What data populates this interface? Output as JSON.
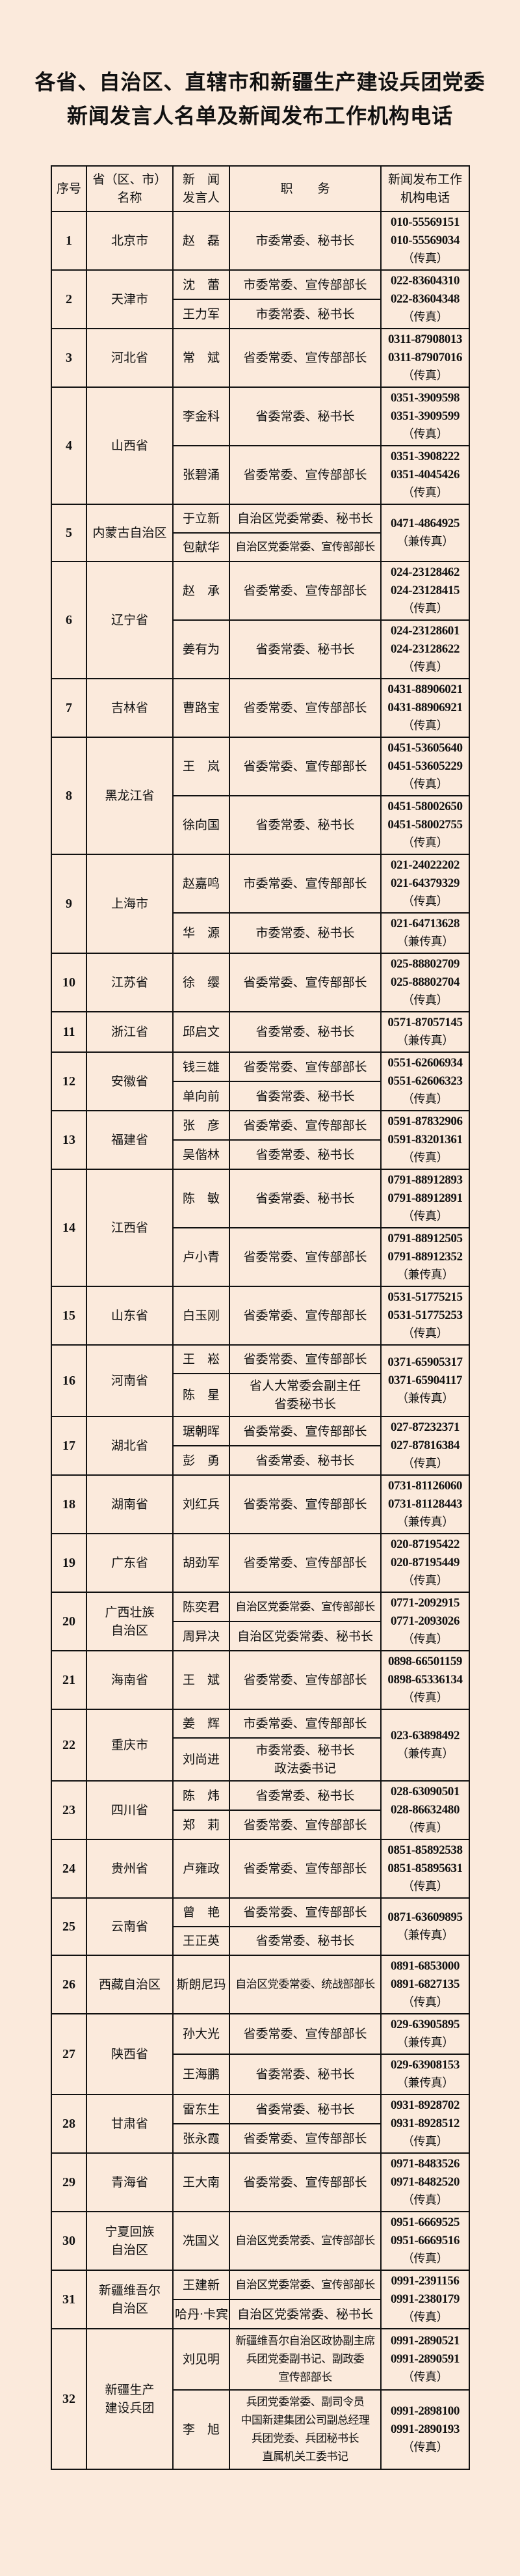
{
  "title": [
    "各省、自治区、直辖市和新疆生产建设兵团党委",
    "新闻发言人名单及新闻发布工作机构电话"
  ],
  "colors": {
    "background": "#fbeadc",
    "border": "#111111",
    "text": "#111111"
  },
  "header": {
    "seq": "序号",
    "province": "省（区、市）\n名称",
    "speaker": "新　闻\n发言人",
    "duty": "职　　务",
    "phone": "新闻发布工作\n机构电话"
  },
  "rows": [
    {
      "seq": "1",
      "province": "北京市",
      "groups": [
        {
          "speakers": [
            {
              "name": "赵　磊",
              "duty": "市委常委、秘书长"
            }
          ],
          "phones": [
            "010-55569151",
            "010-55569034",
            "（传真）"
          ]
        }
      ]
    },
    {
      "seq": "2",
      "province": "天津市",
      "groups": [
        {
          "speakers": [
            {
              "name": "沈　蕾",
              "duty": "市委常委、宣传部部长"
            },
            {
              "name": "王力军",
              "duty": "市委常委、秘书长"
            }
          ],
          "phones": [
            "022-83604310",
            "022-83604348",
            "（传真）"
          ]
        }
      ]
    },
    {
      "seq": "3",
      "province": "河北省",
      "groups": [
        {
          "speakers": [
            {
              "name": "常　斌",
              "duty": "省委常委、宣传部部长"
            }
          ],
          "phones": [
            "0311-87908013",
            "0311-87907016",
            "（传真）"
          ]
        }
      ]
    },
    {
      "seq": "4",
      "province": "山西省",
      "groups": [
        {
          "speakers": [
            {
              "name": "李金科",
              "duty": "省委常委、秘书长"
            }
          ],
          "phones": [
            "0351-3909598",
            "0351-3909599",
            "（传真）"
          ]
        },
        {
          "speakers": [
            {
              "name": "张碧涌",
              "duty": "省委常委、宣传部部长"
            }
          ],
          "phones": [
            "0351-3908222",
            "0351-4045426",
            "（传真）"
          ]
        }
      ]
    },
    {
      "seq": "5",
      "province": "内蒙古自治区",
      "groups": [
        {
          "speakers": [
            {
              "name": "于立新",
              "duty": "自治区党委常委、秘书长"
            },
            {
              "name": "包献华",
              "duty": "自治区党委常委、宣传部部长"
            }
          ],
          "phones": [
            "0471-4864925",
            "（兼传真）"
          ]
        }
      ]
    },
    {
      "seq": "6",
      "province": "辽宁省",
      "groups": [
        {
          "speakers": [
            {
              "name": "赵　承",
              "duty": "省委常委、宣传部部长"
            }
          ],
          "phones": [
            "024-23128462",
            "024-23128415",
            "（传真）"
          ]
        },
        {
          "speakers": [
            {
              "name": "姜有为",
              "duty": "省委常委、秘书长"
            }
          ],
          "phones": [
            "024-23128601",
            "024-23128622",
            "（传真）"
          ]
        }
      ]
    },
    {
      "seq": "7",
      "province": "吉林省",
      "groups": [
        {
          "speakers": [
            {
              "name": "曹路宝",
              "duty": "省委常委、宣传部部长"
            }
          ],
          "phones": [
            "0431-88906021",
            "0431-88906921",
            "（传真）"
          ]
        }
      ]
    },
    {
      "seq": "8",
      "province": "黑龙江省",
      "groups": [
        {
          "speakers": [
            {
              "name": "王　岚",
              "duty": "省委常委、宣传部部长"
            }
          ],
          "phones": [
            "0451-53605640",
            "0451-53605229",
            "（传真）"
          ]
        },
        {
          "speakers": [
            {
              "name": "徐向国",
              "duty": "省委常委、秘书长"
            }
          ],
          "phones": [
            "0451-58002650",
            "0451-58002755",
            "（传真）"
          ]
        }
      ]
    },
    {
      "seq": "9",
      "province": "上海市",
      "groups": [
        {
          "speakers": [
            {
              "name": "赵嘉鸣",
              "duty": "市委常委、宣传部部长"
            }
          ],
          "phones": [
            "021-24022202",
            "021-64379329",
            "（传真）"
          ]
        },
        {
          "speakers": [
            {
              "name": "华　源",
              "duty": "市委常委、秘书长"
            }
          ],
          "phones": [
            "021-64713628",
            "（兼传真）"
          ]
        }
      ]
    },
    {
      "seq": "10",
      "province": "江苏省",
      "groups": [
        {
          "speakers": [
            {
              "name": "徐　缨",
              "duty": "省委常委、宣传部部长"
            }
          ],
          "phones": [
            "025-88802709",
            "025-88802704",
            "（传真）"
          ]
        }
      ]
    },
    {
      "seq": "11",
      "province": "浙江省",
      "groups": [
        {
          "speakers": [
            {
              "name": "邱启文",
              "duty": "省委常委、秘书长"
            }
          ],
          "phones": [
            "0571-87057145",
            "（兼传真）"
          ]
        }
      ]
    },
    {
      "seq": "12",
      "province": "安徽省",
      "groups": [
        {
          "speakers": [
            {
              "name": "钱三雄",
              "duty": "省委常委、宣传部部长"
            },
            {
              "name": "单向前",
              "duty": "省委常委、秘书长"
            }
          ],
          "phones": [
            "0551-62606934",
            "0551-62606323",
            "（传真）"
          ]
        }
      ]
    },
    {
      "seq": "13",
      "province": "福建省",
      "groups": [
        {
          "speakers": [
            {
              "name": "张　彦",
              "duty": "省委常委、宣传部部长"
            },
            {
              "name": "吴偕林",
              "duty": "省委常委、秘书长"
            }
          ],
          "phones": [
            "0591-87832906",
            "0591-83201361",
            "（传真）"
          ]
        }
      ]
    },
    {
      "seq": "14",
      "province": "江西省",
      "groups": [
        {
          "speakers": [
            {
              "name": "陈　敏",
              "duty": "省委常委、秘书长"
            }
          ],
          "phones": [
            "0791-88912893",
            "0791-88912891",
            "（传真）"
          ]
        },
        {
          "speakers": [
            {
              "name": "卢小青",
              "duty": "省委常委、宣传部部长"
            }
          ],
          "phones": [
            "0791-88912505",
            "0791-88912352",
            "（兼传真）"
          ]
        }
      ]
    },
    {
      "seq": "15",
      "province": "山东省",
      "groups": [
        {
          "speakers": [
            {
              "name": "白玉刚",
              "duty": "省委常委、宣传部部长"
            }
          ],
          "phones": [
            "0531-51775215",
            "0531-51775253",
            "（传真）"
          ]
        }
      ]
    },
    {
      "seq": "16",
      "province": "河南省",
      "groups": [
        {
          "speakers": [
            {
              "name": "王　崧",
              "duty": "省委常委、宣传部部长"
            },
            {
              "name": "陈　星",
              "duty": "省人大常委会副主任\n省委秘书长"
            }
          ],
          "phones": [
            "0371-65905317",
            "0371-65904117",
            "（兼传真）"
          ]
        }
      ]
    },
    {
      "seq": "17",
      "province": "湖北省",
      "groups": [
        {
          "speakers": [
            {
              "name": "琚朝晖",
              "duty": "省委常委、宣传部部长"
            },
            {
              "name": "彭　勇",
              "duty": "省委常委、秘书长"
            }
          ],
          "phones": [
            "027-87232371",
            "027-87816384",
            "（传真）"
          ]
        }
      ]
    },
    {
      "seq": "18",
      "province": "湖南省",
      "groups": [
        {
          "speakers": [
            {
              "name": "刘红兵",
              "duty": "省委常委、宣传部部长"
            }
          ],
          "phones": [
            "0731-81126060",
            "0731-81128443",
            "（兼传真）"
          ]
        }
      ]
    },
    {
      "seq": "19",
      "province": "广东省",
      "groups": [
        {
          "speakers": [
            {
              "name": "胡劲军",
              "duty": "省委常委、宣传部部长"
            }
          ],
          "phones": [
            "020-87195422",
            "020-87195449",
            "（传真）"
          ]
        }
      ]
    },
    {
      "seq": "20",
      "province": "广西壮族\n自治区",
      "groups": [
        {
          "speakers": [
            {
              "name": "陈奕君",
              "duty": "自治区党委常委、宣传部部长"
            },
            {
              "name": "周异决",
              "duty": "自治区党委常委、秘书长"
            }
          ],
          "phones": [
            "0771-2092915",
            "0771-2093026",
            "（传真）"
          ]
        }
      ]
    },
    {
      "seq": "21",
      "province": "海南省",
      "groups": [
        {
          "speakers": [
            {
              "name": "王　斌",
              "duty": "省委常委、宣传部部长"
            }
          ],
          "phones": [
            "0898-66501159",
            "0898-65336134",
            "（传真）"
          ]
        }
      ]
    },
    {
      "seq": "22",
      "province": "重庆市",
      "groups": [
        {
          "speakers": [
            {
              "name": "姜　辉",
              "duty": "市委常委、宣传部部长"
            },
            {
              "name": "刘尚进",
              "duty": "市委常委、秘书长\n政法委书记"
            }
          ],
          "phones": [
            "023-63898492",
            "（兼传真）"
          ]
        }
      ]
    },
    {
      "seq": "23",
      "province": "四川省",
      "groups": [
        {
          "speakers": [
            {
              "name": "陈　炜",
              "duty": "省委常委、秘书长"
            },
            {
              "name": "郑　莉",
              "duty": "省委常委、宣传部部长"
            }
          ],
          "phones": [
            "028-63090501",
            "028-86632480",
            "（传真）"
          ]
        }
      ]
    },
    {
      "seq": "24",
      "province": "贵州省",
      "groups": [
        {
          "speakers": [
            {
              "name": "卢雍政",
              "duty": "省委常委、宣传部部长"
            }
          ],
          "phones": [
            "0851-85892538",
            "0851-85895631",
            "（传真）"
          ]
        }
      ]
    },
    {
      "seq": "25",
      "province": "云南省",
      "groups": [
        {
          "speakers": [
            {
              "name": "曾　艳",
              "duty": "省委常委、宣传部部长"
            },
            {
              "name": "王正英",
              "duty": "省委常委、秘书长"
            }
          ],
          "phones": [
            "0871-63609895",
            "（兼传真）"
          ]
        }
      ]
    },
    {
      "seq": "26",
      "province": "西藏自治区",
      "groups": [
        {
          "speakers": [
            {
              "name": "斯朗尼玛",
              "duty": "自治区党委常委、统战部部长"
            }
          ],
          "phones": [
            "0891-6853000",
            "0891-6827135",
            "（传真）"
          ]
        }
      ]
    },
    {
      "seq": "27",
      "province": "陕西省",
      "groups": [
        {
          "speakers": [
            {
              "name": "孙大光",
              "duty": "省委常委、宣传部部长"
            }
          ],
          "phones": [
            "029-63905895",
            "（兼传真）"
          ]
        },
        {
          "speakers": [
            {
              "name": "王海鹏",
              "duty": "省委常委、秘书长"
            }
          ],
          "phones": [
            "029-63908153",
            "（兼传真）"
          ]
        }
      ]
    },
    {
      "seq": "28",
      "province": "甘肃省",
      "groups": [
        {
          "speakers": [
            {
              "name": "雷东生",
              "duty": "省委常委、秘书长"
            },
            {
              "name": "张永霞",
              "duty": "省委常委、宣传部部长"
            }
          ],
          "phones": [
            "0931-8928702",
            "0931-8928512",
            "（传真）"
          ]
        }
      ]
    },
    {
      "seq": "29",
      "province": "青海省",
      "groups": [
        {
          "speakers": [
            {
              "name": "王大南",
              "duty": "省委常委、宣传部部长"
            }
          ],
          "phones": [
            "0971-8483526",
            "0971-8482520",
            "（传真）"
          ]
        }
      ]
    },
    {
      "seq": "30",
      "province": "宁夏回族\n自治区",
      "groups": [
        {
          "speakers": [
            {
              "name": "冼国义",
              "duty": "自治区党委常委、宣传部部长"
            }
          ],
          "phones": [
            "0951-6669525",
            "0951-6669516",
            "（传真）"
          ]
        }
      ]
    },
    {
      "seq": "31",
      "province": "新疆维吾尔\n自治区",
      "groups": [
        {
          "speakers": [
            {
              "name": "王建新",
              "duty": "自治区党委常委、宣传部部长"
            },
            {
              "name": "哈丹·卡宾",
              "duty": "自治区党委常委、秘书长"
            }
          ],
          "phones": [
            "0991-2391156",
            "0991-2380179",
            "（传真）"
          ]
        }
      ]
    },
    {
      "seq": "32",
      "province": "新疆生产\n建设兵团",
      "groups": [
        {
          "speakers": [
            {
              "name": "刘见明",
              "duty": "新疆维吾尔自治区政协副主席\n兵团党委副书记、副政委\n宣传部部长"
            }
          ],
          "phones": [
            "0991-2890521",
            "0991-2890591",
            "（传真）"
          ]
        },
        {
          "speakers": [
            {
              "name": "李　旭",
              "duty": "兵团党委常委、副司令员\n中国新建集团公司副总经理\n兵团党委、兵团秘书长\n直属机关工委书记"
            }
          ],
          "phones": [
            "0991-2898100",
            "0991-2890193",
            "（传真）"
          ]
        }
      ]
    }
  ]
}
